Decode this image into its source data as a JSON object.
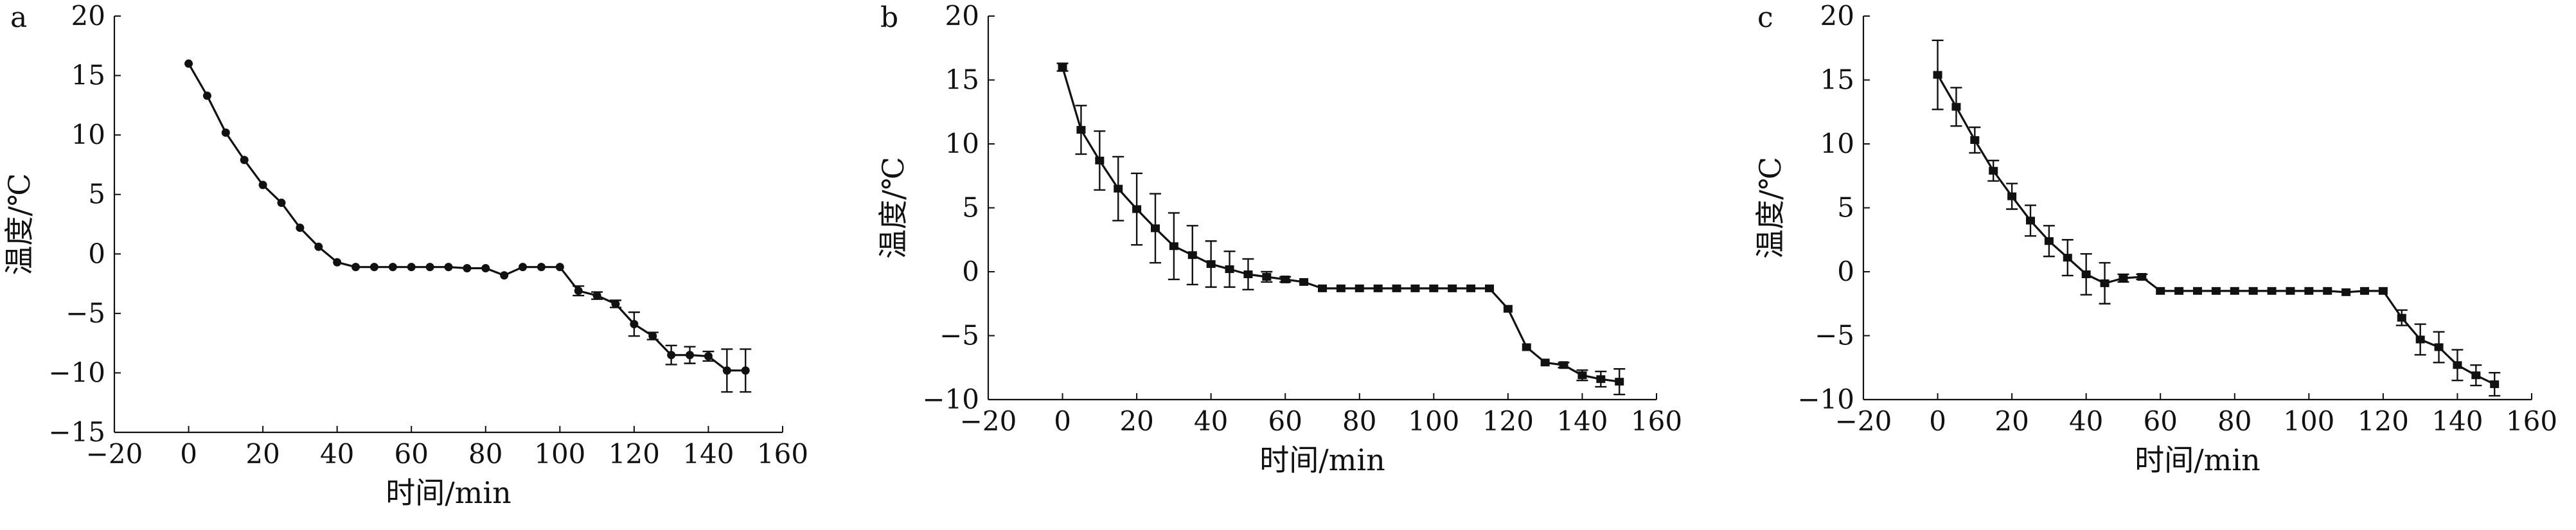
{
  "chart_data": [
    {
      "type": "line",
      "panel_label": "a",
      "xlabel": "时间/min",
      "ylabel": "温度/℃",
      "xlim": [
        -20,
        160
      ],
      "ylim": [
        -15,
        20
      ],
      "xticks": [
        "−20",
        "0",
        "20",
        "40",
        "60",
        "80",
        "100",
        "120",
        "140",
        "160"
      ],
      "yticks": [
        "−15",
        "−10",
        "−5",
        "0",
        "5",
        "10",
        "15",
        "20"
      ],
      "grid": false,
      "x": [
        0,
        5,
        10,
        15,
        20,
        25,
        30,
        35,
        40,
        45,
        50,
        55,
        60,
        65,
        70,
        75,
        80,
        85,
        90,
        95,
        100,
        105,
        110,
        115,
        120,
        125,
        130,
        135,
        140,
        145,
        150
      ],
      "y": [
        16.0,
        13.3,
        10.2,
        7.9,
        5.8,
        4.3,
        2.2,
        0.6,
        -0.7,
        -1.1,
        -1.1,
        -1.1,
        -1.1,
        -1.1,
        -1.1,
        -1.2,
        -1.2,
        -1.8,
        -1.1,
        -1.1,
        -1.1,
        -3.1,
        -3.5,
        -4.2,
        -5.9,
        -6.9,
        -8.5,
        -8.5,
        -8.6,
        -9.8,
        -9.8
      ],
      "err": [
        0,
        0,
        0,
        0,
        0,
        0,
        0,
        0,
        0,
        0,
        0,
        0,
        0,
        0,
        0,
        0,
        0,
        0,
        0,
        0,
        0,
        0.4,
        0.3,
        0.3,
        1.0,
        0.3,
        0.8,
        0.7,
        0.4,
        1.8,
        1.8
      ]
    },
    {
      "type": "line",
      "panel_label": "b",
      "xlabel": "时间/min",
      "ylabel": "温度/℃",
      "xlim": [
        -20,
        160
      ],
      "ylim": [
        -10,
        20
      ],
      "xticks": [
        "−20",
        "0",
        "20",
        "40",
        "60",
        "80",
        "100",
        "120",
        "140",
        "160"
      ],
      "yticks": [
        "−10",
        "−5",
        "0",
        "5",
        "10",
        "15",
        "20"
      ],
      "grid": false,
      "x": [
        0,
        5,
        10,
        15,
        20,
        25,
        30,
        35,
        40,
        45,
        50,
        55,
        60,
        65,
        70,
        75,
        80,
        85,
        90,
        95,
        100,
        105,
        110,
        115,
        120,
        125,
        130,
        135,
        140,
        145,
        150
      ],
      "y": [
        16.0,
        11.1,
        8.7,
        6.5,
        4.9,
        3.4,
        2.0,
        1.3,
        0.6,
        0.2,
        -0.2,
        -0.4,
        -0.6,
        -0.8,
        -1.3,
        -1.3,
        -1.3,
        -1.3,
        -1.3,
        -1.3,
        -1.3,
        -1.3,
        -1.3,
        -1.3,
        -2.9,
        -5.9,
        -7.1,
        -7.3,
        -8.1,
        -8.4,
        -8.6
      ],
      "err": [
        0.3,
        1.9,
        2.3,
        2.5,
        2.8,
        2.7,
        2.6,
        2.3,
        1.8,
        1.4,
        1.2,
        0.4,
        0.2,
        0,
        0,
        0,
        0,
        0,
        0,
        0,
        0,
        0,
        0,
        0,
        0,
        0,
        0,
        0.2,
        0.4,
        0.6,
        1.0
      ]
    },
    {
      "type": "line",
      "panel_label": "c",
      "xlabel": "时间/min",
      "ylabel": "温度/℃",
      "xlim": [
        -20,
        160
      ],
      "ylim": [
        -10,
        20
      ],
      "xticks": [
        "−20",
        "0",
        "20",
        "40",
        "60",
        "80",
        "100",
        "120",
        "140",
        "160"
      ],
      "yticks": [
        "−10",
        "−5",
        "0",
        "5",
        "10",
        "15",
        "20"
      ],
      "grid": false,
      "x": [
        0,
        5,
        10,
        15,
        20,
        25,
        30,
        35,
        40,
        45,
        50,
        55,
        60,
        65,
        70,
        75,
        80,
        85,
        90,
        95,
        100,
        105,
        110,
        115,
        120,
        125,
        130,
        135,
        140,
        145,
        150
      ],
      "y": [
        15.4,
        12.9,
        10.3,
        7.9,
        5.9,
        4.0,
        2.4,
        1.1,
        -0.2,
        -0.9,
        -0.5,
        -0.4,
        -1.5,
        -1.5,
        -1.5,
        -1.5,
        -1.5,
        -1.5,
        -1.5,
        -1.5,
        -1.5,
        -1.5,
        -1.6,
        -1.5,
        -1.5,
        -3.6,
        -5.3,
        -5.9,
        -7.3,
        -8.1,
        -8.8
      ],
      "err": [
        2.7,
        1.5,
        1.0,
        0.8,
        1.0,
        1.2,
        1.2,
        1.4,
        1.6,
        1.6,
        0.3,
        0.2,
        0,
        0,
        0,
        0,
        0,
        0,
        0,
        0,
        0,
        0,
        0,
        0,
        0,
        0.6,
        1.2,
        1.2,
        1.2,
        0.8,
        0.9
      ]
    }
  ]
}
